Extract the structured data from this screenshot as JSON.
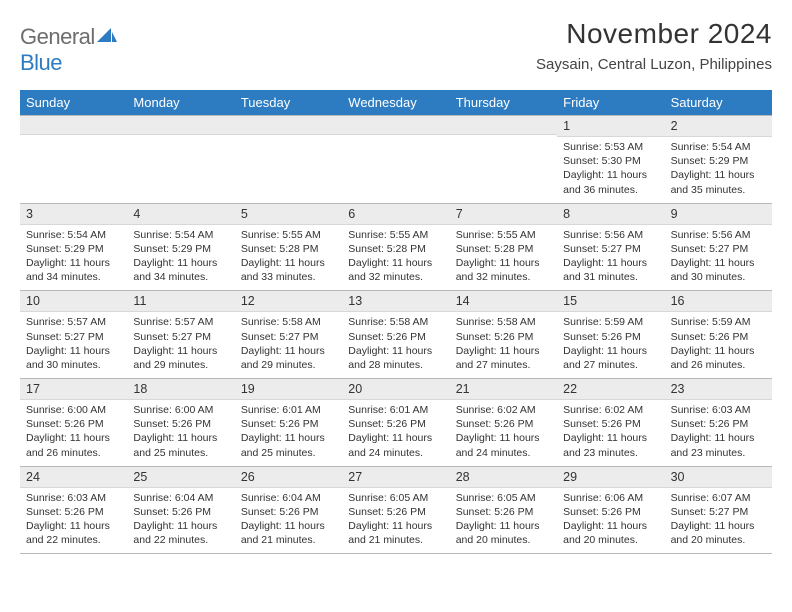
{
  "logo": {
    "word1": "General",
    "word2": "Blue"
  },
  "title": "November 2024",
  "location": "Saysain, Central Luzon, Philippines",
  "colors": {
    "header_bar": "#2d7cc1",
    "header_text": "#ffffff",
    "day_bar_bg": "#ececec",
    "day_bar_border": "#b8b8b8",
    "body_text": "#333333",
    "logo_gray": "#6d6d6d",
    "logo_blue": "#2d7cc1",
    "page_bg": "#ffffff"
  },
  "typography": {
    "title_fontsize": 28,
    "location_fontsize": 15,
    "dow_fontsize": 13,
    "daynum_fontsize": 12.5,
    "body_fontsize": 10.5
  },
  "dow": [
    "Sunday",
    "Monday",
    "Tuesday",
    "Wednesday",
    "Thursday",
    "Friday",
    "Saturday"
  ],
  "weeks": [
    [
      {
        "n": "",
        "sr": "",
        "ss": "",
        "dl": ""
      },
      {
        "n": "",
        "sr": "",
        "ss": "",
        "dl": ""
      },
      {
        "n": "",
        "sr": "",
        "ss": "",
        "dl": ""
      },
      {
        "n": "",
        "sr": "",
        "ss": "",
        "dl": ""
      },
      {
        "n": "",
        "sr": "",
        "ss": "",
        "dl": ""
      },
      {
        "n": "1",
        "sr": "Sunrise: 5:53 AM",
        "ss": "Sunset: 5:30 PM",
        "dl": "Daylight: 11 hours and 36 minutes."
      },
      {
        "n": "2",
        "sr": "Sunrise: 5:54 AM",
        "ss": "Sunset: 5:29 PM",
        "dl": "Daylight: 11 hours and 35 minutes."
      }
    ],
    [
      {
        "n": "3",
        "sr": "Sunrise: 5:54 AM",
        "ss": "Sunset: 5:29 PM",
        "dl": "Daylight: 11 hours and 34 minutes."
      },
      {
        "n": "4",
        "sr": "Sunrise: 5:54 AM",
        "ss": "Sunset: 5:29 PM",
        "dl": "Daylight: 11 hours and 34 minutes."
      },
      {
        "n": "5",
        "sr": "Sunrise: 5:55 AM",
        "ss": "Sunset: 5:28 PM",
        "dl": "Daylight: 11 hours and 33 minutes."
      },
      {
        "n": "6",
        "sr": "Sunrise: 5:55 AM",
        "ss": "Sunset: 5:28 PM",
        "dl": "Daylight: 11 hours and 32 minutes."
      },
      {
        "n": "7",
        "sr": "Sunrise: 5:55 AM",
        "ss": "Sunset: 5:28 PM",
        "dl": "Daylight: 11 hours and 32 minutes."
      },
      {
        "n": "8",
        "sr": "Sunrise: 5:56 AM",
        "ss": "Sunset: 5:27 PM",
        "dl": "Daylight: 11 hours and 31 minutes."
      },
      {
        "n": "9",
        "sr": "Sunrise: 5:56 AM",
        "ss": "Sunset: 5:27 PM",
        "dl": "Daylight: 11 hours and 30 minutes."
      }
    ],
    [
      {
        "n": "10",
        "sr": "Sunrise: 5:57 AM",
        "ss": "Sunset: 5:27 PM",
        "dl": "Daylight: 11 hours and 30 minutes."
      },
      {
        "n": "11",
        "sr": "Sunrise: 5:57 AM",
        "ss": "Sunset: 5:27 PM",
        "dl": "Daylight: 11 hours and 29 minutes."
      },
      {
        "n": "12",
        "sr": "Sunrise: 5:58 AM",
        "ss": "Sunset: 5:27 PM",
        "dl": "Daylight: 11 hours and 29 minutes."
      },
      {
        "n": "13",
        "sr": "Sunrise: 5:58 AM",
        "ss": "Sunset: 5:26 PM",
        "dl": "Daylight: 11 hours and 28 minutes."
      },
      {
        "n": "14",
        "sr": "Sunrise: 5:58 AM",
        "ss": "Sunset: 5:26 PM",
        "dl": "Daylight: 11 hours and 27 minutes."
      },
      {
        "n": "15",
        "sr": "Sunrise: 5:59 AM",
        "ss": "Sunset: 5:26 PM",
        "dl": "Daylight: 11 hours and 27 minutes."
      },
      {
        "n": "16",
        "sr": "Sunrise: 5:59 AM",
        "ss": "Sunset: 5:26 PM",
        "dl": "Daylight: 11 hours and 26 minutes."
      }
    ],
    [
      {
        "n": "17",
        "sr": "Sunrise: 6:00 AM",
        "ss": "Sunset: 5:26 PM",
        "dl": "Daylight: 11 hours and 26 minutes."
      },
      {
        "n": "18",
        "sr": "Sunrise: 6:00 AM",
        "ss": "Sunset: 5:26 PM",
        "dl": "Daylight: 11 hours and 25 minutes."
      },
      {
        "n": "19",
        "sr": "Sunrise: 6:01 AM",
        "ss": "Sunset: 5:26 PM",
        "dl": "Daylight: 11 hours and 25 minutes."
      },
      {
        "n": "20",
        "sr": "Sunrise: 6:01 AM",
        "ss": "Sunset: 5:26 PM",
        "dl": "Daylight: 11 hours and 24 minutes."
      },
      {
        "n": "21",
        "sr": "Sunrise: 6:02 AM",
        "ss": "Sunset: 5:26 PM",
        "dl": "Daylight: 11 hours and 24 minutes."
      },
      {
        "n": "22",
        "sr": "Sunrise: 6:02 AM",
        "ss": "Sunset: 5:26 PM",
        "dl": "Daylight: 11 hours and 23 minutes."
      },
      {
        "n": "23",
        "sr": "Sunrise: 6:03 AM",
        "ss": "Sunset: 5:26 PM",
        "dl": "Daylight: 11 hours and 23 minutes."
      }
    ],
    [
      {
        "n": "24",
        "sr": "Sunrise: 6:03 AM",
        "ss": "Sunset: 5:26 PM",
        "dl": "Daylight: 11 hours and 22 minutes."
      },
      {
        "n": "25",
        "sr": "Sunrise: 6:04 AM",
        "ss": "Sunset: 5:26 PM",
        "dl": "Daylight: 11 hours and 22 minutes."
      },
      {
        "n": "26",
        "sr": "Sunrise: 6:04 AM",
        "ss": "Sunset: 5:26 PM",
        "dl": "Daylight: 11 hours and 21 minutes."
      },
      {
        "n": "27",
        "sr": "Sunrise: 6:05 AM",
        "ss": "Sunset: 5:26 PM",
        "dl": "Daylight: 11 hours and 21 minutes."
      },
      {
        "n": "28",
        "sr": "Sunrise: 6:05 AM",
        "ss": "Sunset: 5:26 PM",
        "dl": "Daylight: 11 hours and 20 minutes."
      },
      {
        "n": "29",
        "sr": "Sunrise: 6:06 AM",
        "ss": "Sunset: 5:26 PM",
        "dl": "Daylight: 11 hours and 20 minutes."
      },
      {
        "n": "30",
        "sr": "Sunrise: 6:07 AM",
        "ss": "Sunset: 5:27 PM",
        "dl": "Daylight: 11 hours and 20 minutes."
      }
    ]
  ]
}
